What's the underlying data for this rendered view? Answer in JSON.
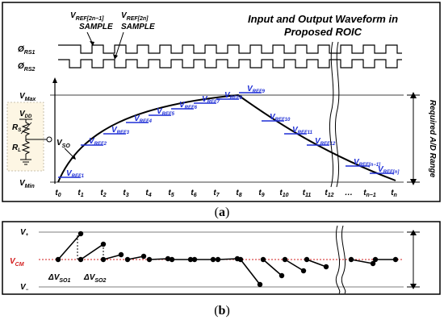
{
  "panel_a": {
    "title_line1": "Input and Output Waveform in",
    "title_line2": "Proposed ROIC",
    "sample1": "V",
    "sample1_sub": "REF[2n−1]",
    "sample1_word": "SAMPLE",
    "sample2": "V",
    "sample2_sub": "REF[2n]",
    "sample2_word": "SAMPLE",
    "phi1": "Ø",
    "phi1_sub": "RS1",
    "phi2": "Ø",
    "phi2_sub": "RS2",
    "vmax": "V",
    "vmax_sub": "Max",
    "vmin": "V",
    "vmin_sub": "Min",
    "vdd": "V",
    "vdd_sub": "DD",
    "rs": "R",
    "rs_sub": "S",
    "rl": "R",
    "rl_sub": "L",
    "vso": "V",
    "vso_sub": "SO",
    "right_label": "Required A/D Range",
    "ticks": [
      "t",
      "t",
      "t",
      "t",
      "t",
      "t",
      "t",
      "t",
      "t",
      "t",
      "t",
      "t",
      "t",
      "…",
      "t",
      "t"
    ],
    "tick_subs": [
      "0",
      "1",
      "2",
      "3",
      "4",
      "5",
      "6",
      "7",
      "8",
      "9",
      "10",
      "11",
      "12",
      "",
      "n−1",
      "n"
    ],
    "vref_subs": [
      "REF1",
      "REF2",
      "REF3",
      "REF4",
      "REF5",
      "REF6",
      "REF7",
      "REF8",
      "REF9",
      "REF10",
      "REF11",
      "REF12",
      "REF[n−1]",
      "REF[n]"
    ],
    "caption": "a",
    "colors": {
      "vref": "#1f2fd6",
      "line": "#000000"
    }
  },
  "panel_b": {
    "vplus": "V",
    "vplus_sub": "+",
    "vminus": "V",
    "vminus_sub": "−",
    "vcm": "V",
    "vcm_sub": "CM",
    "dv1": "ΔV",
    "dv1_sub": "SO1",
    "dv2": "ΔV",
    "dv2_sub": "SO2",
    "caption": "b",
    "colors": {
      "vcm": "#d21b1b"
    }
  }
}
